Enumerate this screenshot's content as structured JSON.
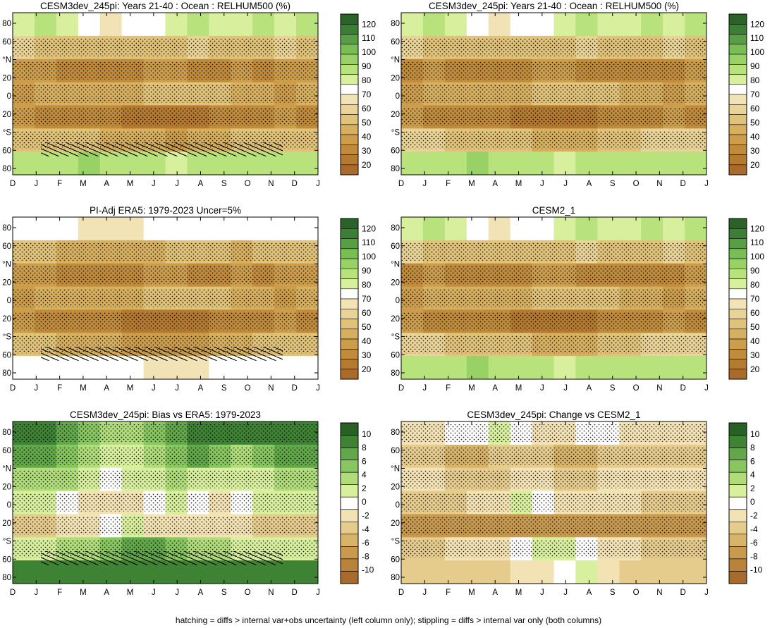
{
  "footer": "hatching = diffs > internal var+obs uncertainty (left column only); stippling = diffs > internal var only (both columns)",
  "months": [
    "D",
    "J",
    "F",
    "M",
    "A",
    "M",
    "J",
    "J",
    "A",
    "S",
    "O",
    "N",
    "D",
    "J"
  ],
  "lat_labels": [
    "80",
    "60",
    "°N",
    "20",
    "0",
    "20",
    "°S",
    "60",
    "80"
  ],
  "colors": {
    "abs": [
      "#a86b2c",
      "#b47a30",
      "#c08c3c",
      "#cc9e4c",
      "#d6b05e",
      "#e0c278",
      "#e9d396",
      "#f2e3b6",
      "#ffffff",
      "#d8ef9e",
      "#b8e27c",
      "#98d266",
      "#78be52",
      "#589e44",
      "#3c7e36",
      "#2a6228"
    ],
    "diff": [
      "#a86b2c",
      "#b8823a",
      "#c89a4e",
      "#d8b468",
      "#e6cc8c",
      "#f2e2b4",
      "#ffffff",
      "#d8ef9e",
      "#b0dc7a",
      "#88c660",
      "#62a84a",
      "#3e8234",
      "#286026"
    ]
  },
  "chart_data": [
    {
      "type": "heatmap",
      "title": "CESM3dev_245pi: Years 21-40 : Ocean : RELHUM500 (%)",
      "x": [
        "D",
        "J",
        "F",
        "M",
        "A",
        "M",
        "J",
        "J",
        "A",
        "S",
        "O",
        "N",
        "D",
        "J"
      ],
      "y": [
        "80",
        "60",
        "°N",
        "20",
        "0",
        "20",
        "°S",
        "60",
        "80"
      ],
      "colorbar": [
        "20",
        "30",
        "40",
        "50",
        "60",
        "70",
        "80",
        "90",
        "100",
        "110",
        "120"
      ],
      "hatching": true,
      "grid_values_percent": [
        [
          82,
          84,
          78,
          72,
          66,
          70,
          74,
          82,
          84,
          80,
          78,
          84,
          82,
          84
        ],
        [
          58,
          56,
          54,
          52,
          50,
          52,
          54,
          56,
          58,
          56,
          54,
          56,
          58,
          56
        ],
        [
          38,
          40,
          34,
          30,
          34,
          36,
          38,
          40,
          36,
          34,
          38,
          36,
          38,
          40
        ],
        [
          42,
          44,
          46,
          48,
          46,
          48,
          50,
          52,
          54,
          50,
          46,
          44,
          42,
          44
        ],
        [
          38,
          36,
          34,
          32,
          30,
          28,
          26,
          24,
          26,
          30,
          34,
          36,
          38,
          36
        ],
        [
          56,
          54,
          52,
          50,
          48,
          46,
          44,
          42,
          44,
          48,
          52,
          54,
          56,
          54
        ],
        [
          84,
          86,
          88,
          90,
          88,
          86,
          84,
          82,
          84,
          86,
          88,
          86,
          84,
          86
        ]
      ]
    },
    {
      "type": "heatmap",
      "title": "CESM3dev_245pi: Years 21-40 : Ocean : RELHUM500 (%)",
      "x": [
        "D",
        "J",
        "F",
        "M",
        "A",
        "M",
        "J",
        "J",
        "A",
        "S",
        "O",
        "N",
        "D",
        "J"
      ],
      "y": [
        "80",
        "60",
        "°N",
        "20",
        "0",
        "20",
        "°S",
        "60",
        "80"
      ],
      "colorbar": [
        "20",
        "30",
        "40",
        "50",
        "60",
        "70",
        "80",
        "90",
        "100",
        "110",
        "120"
      ],
      "hatching": false,
      "grid_values_percent": [
        [
          82,
          84,
          80,
          74,
          68,
          70,
          74,
          80,
          84,
          82,
          78,
          84,
          82,
          84
        ],
        [
          58,
          56,
          54,
          52,
          50,
          52,
          54,
          56,
          58,
          56,
          54,
          56,
          58,
          56
        ],
        [
          36,
          38,
          34,
          30,
          32,
          36,
          38,
          40,
          36,
          34,
          36,
          36,
          36,
          38
        ],
        [
          42,
          44,
          46,
          48,
          46,
          48,
          50,
          52,
          54,
          50,
          46,
          44,
          42,
          44
        ],
        [
          38,
          36,
          34,
          32,
          30,
          28,
          26,
          24,
          26,
          30,
          34,
          36,
          38,
          36
        ],
        [
          60,
          58,
          56,
          54,
          52,
          50,
          48,
          46,
          48,
          52,
          56,
          58,
          60,
          58
        ],
        [
          86,
          88,
          88,
          90,
          88,
          86,
          84,
          82,
          84,
          86,
          88,
          86,
          86,
          88
        ]
      ]
    },
    {
      "type": "heatmap",
      "title": "PI-Adj ERA5: 1979-2023 Uncer=5%",
      "x": [
        "D",
        "J",
        "F",
        "M",
        "A",
        "M",
        "J",
        "J",
        "A",
        "S",
        "O",
        "N",
        "D",
        "J"
      ],
      "y": [
        "80",
        "60",
        "°N",
        "20",
        "0",
        "20",
        "°S",
        "60",
        "80"
      ],
      "colorbar": [
        "20",
        "30",
        "40",
        "50",
        "60",
        "70",
        "80",
        "90",
        "100",
        "110",
        "120"
      ],
      "hatching": true,
      "grid_values_percent": [
        [
          70,
          72,
          70,
          68,
          66,
          68,
          70,
          72,
          70,
          70,
          70,
          72,
          70,
          72
        ],
        [
          52,
          50,
          48,
          46,
          44,
          46,
          48,
          50,
          52,
          50,
          48,
          50,
          52,
          50
        ],
        [
          38,
          40,
          34,
          30,
          34,
          36,
          38,
          40,
          36,
          34,
          38,
          36,
          38,
          40
        ],
        [
          42,
          44,
          46,
          48,
          46,
          48,
          50,
          52,
          54,
          50,
          46,
          44,
          42,
          44
        ],
        [
          38,
          36,
          34,
          32,
          30,
          28,
          26,
          24,
          26,
          30,
          34,
          36,
          38,
          36
        ],
        [
          52,
          50,
          48,
          46,
          44,
          42,
          40,
          38,
          40,
          44,
          48,
          50,
          52,
          50
        ],
        [
          70,
          72,
          72,
          74,
          72,
          70,
          68,
          66,
          68,
          70,
          72,
          70,
          70,
          72
        ]
      ]
    },
    {
      "type": "heatmap",
      "title": "CESM2_1",
      "x": [
        "D",
        "J",
        "F",
        "M",
        "A",
        "M",
        "J",
        "J",
        "A",
        "S",
        "O",
        "N",
        "D",
        "J"
      ],
      "y": [
        "80",
        "60",
        "°N",
        "20",
        "0",
        "20",
        "°S",
        "60",
        "80"
      ],
      "colorbar": [
        "20",
        "30",
        "40",
        "50",
        "60",
        "70",
        "80",
        "90",
        "100",
        "110",
        "120"
      ],
      "hatching": false,
      "grid_values_percent": [
        [
          82,
          84,
          80,
          74,
          68,
          70,
          74,
          80,
          84,
          82,
          78,
          84,
          82,
          84
        ],
        [
          58,
          56,
          54,
          52,
          50,
          52,
          54,
          56,
          58,
          56,
          54,
          56,
          58,
          56
        ],
        [
          36,
          38,
          34,
          30,
          32,
          36,
          38,
          40,
          36,
          34,
          36,
          36,
          36,
          38
        ],
        [
          42,
          44,
          46,
          48,
          46,
          48,
          50,
          52,
          54,
          50,
          46,
          44,
          42,
          44
        ],
        [
          38,
          36,
          34,
          32,
          30,
          28,
          26,
          24,
          26,
          30,
          34,
          36,
          38,
          36
        ],
        [
          60,
          58,
          56,
          54,
          52,
          50,
          48,
          46,
          48,
          52,
          56,
          58,
          60,
          58
        ],
        [
          86,
          88,
          88,
          90,
          88,
          86,
          84,
          82,
          84,
          86,
          88,
          86,
          86,
          88
        ]
      ]
    },
    {
      "type": "heatmap",
      "title": "CESM3dev_245pi: Bias vs ERA5: 1979-2023",
      "x": [
        "D",
        "J",
        "F",
        "M",
        "A",
        "M",
        "J",
        "J",
        "A",
        "S",
        "O",
        "N",
        "D",
        "J"
      ],
      "y": [
        "80",
        "60",
        "°N",
        "20",
        "0",
        "20",
        "°S",
        "60",
        "80"
      ],
      "colorbar": [
        "10",
        "8",
        "6",
        "4",
        "2",
        "0",
        "-2",
        "-4",
        "-6",
        "-8",
        "-10"
      ],
      "hatching": true,
      "grid_values_percent": [
        [
          9,
          9,
          7,
          5,
          3,
          4,
          5,
          7,
          9,
          9,
          8,
          8,
          9,
          9
        ],
        [
          6,
          6,
          5,
          3,
          1,
          2,
          3,
          5,
          6,
          5,
          4,
          5,
          6,
          6
        ],
        [
          3,
          4,
          3,
          1,
          0,
          1,
          2,
          3,
          2,
          1,
          2,
          2,
          3,
          3
        ],
        [
          1,
          1,
          0,
          -1,
          -2,
          -1,
          0,
          1,
          0,
          -1,
          0,
          1,
          1,
          1
        ],
        [
          -3,
          -3,
          -2,
          -1,
          0,
          1,
          -1,
          -2,
          -2,
          -2,
          -2,
          -3,
          -3,
          -3
        ],
        [
          2,
          2,
          3,
          4,
          5,
          6,
          6,
          5,
          4,
          3,
          2,
          2,
          2,
          2
        ],
        [
          9,
          9,
          9,
          9,
          9,
          9,
          9,
          9,
          9,
          9,
          9,
          9,
          9,
          9
        ]
      ]
    },
    {
      "type": "heatmap",
      "title": "CESM3dev_245pi: Change vs CESM2_1",
      "x": [
        "D",
        "J",
        "F",
        "M",
        "A",
        "M",
        "J",
        "J",
        "A",
        "S",
        "O",
        "N",
        "D",
        "J"
      ],
      "y": [
        "80",
        "60",
        "°N",
        "20",
        "0",
        "20",
        "°S",
        "60",
        "80"
      ],
      "colorbar": [
        "10",
        "8",
        "6",
        "4",
        "2",
        "0",
        "-2",
        "-4",
        "-6",
        "-8",
        "-10"
      ],
      "hatching": false,
      "grid_values_percent": [
        [
          -1,
          -1,
          0,
          0,
          1,
          0,
          -1,
          -1,
          0,
          0,
          -1,
          -1,
          -1,
          -1
        ],
        [
          -4,
          -4,
          -5,
          -5,
          -4,
          -4,
          -4,
          -5,
          -5,
          -4,
          -4,
          -4,
          -4,
          -4
        ],
        [
          -2,
          -2,
          -3,
          -4,
          -3,
          -2,
          -2,
          -3,
          -3,
          -2,
          -2,
          -2,
          -2,
          -2
        ],
        [
          -3,
          -3,
          -3,
          -2,
          -1,
          1,
          0,
          -1,
          -2,
          -2,
          -2,
          -3,
          -3,
          -3
        ],
        [
          -6,
          -6,
          -6,
          -6,
          -6,
          -6,
          -6,
          -6,
          -6,
          -6,
          -6,
          -6,
          -6,
          -6
        ],
        [
          -3,
          -3,
          -2,
          -2,
          -1,
          0,
          2,
          1,
          0,
          -2,
          -2,
          -3,
          -3,
          -3
        ],
        [
          -3,
          -3,
          -4,
          -4,
          -3,
          -2,
          -1,
          0,
          1,
          -2,
          -3,
          -3,
          -3,
          -3
        ]
      ]
    }
  ]
}
